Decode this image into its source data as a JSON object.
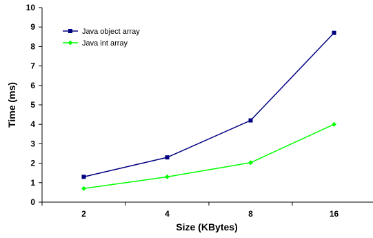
{
  "chart_data": {
    "type": "line",
    "title": "",
    "xlabel": "Size (KBytes)",
    "ylabel": "Time (ms)",
    "categories": [
      "2",
      "4",
      "8",
      "16"
    ],
    "ylim": [
      0,
      10
    ],
    "yticks": [
      "0",
      "1",
      "2",
      "3",
      "4",
      "5",
      "6",
      "7",
      "8",
      "9",
      "10"
    ],
    "grid": false,
    "legend_position": "top-left",
    "series": [
      {
        "name": "Java object array",
        "values": [
          1.3,
          2.3,
          4.2,
          8.7
        ],
        "color": "#000080",
        "marker": "square"
      },
      {
        "name": "Java int array",
        "values": [
          0.7,
          1.3,
          2.03,
          4.0
        ],
        "color": "#00ff00",
        "marker": "diamond"
      }
    ]
  }
}
